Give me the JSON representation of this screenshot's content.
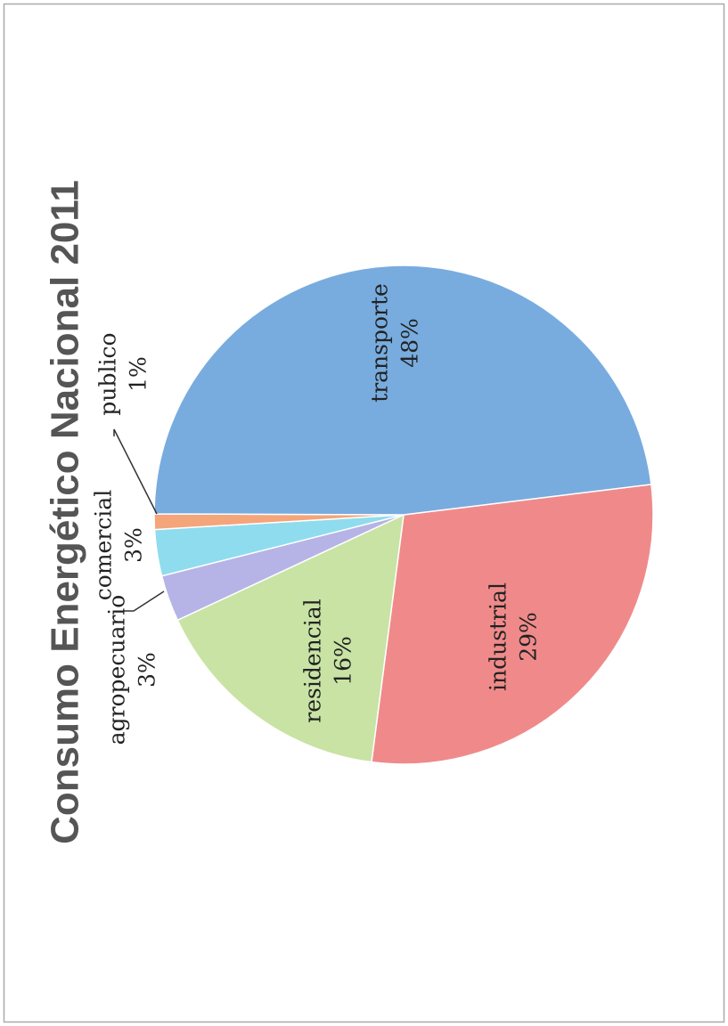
{
  "chart_data": {
    "type": "pie",
    "title": "Consumo Energético Nacional 2011",
    "categories": [
      "industrial",
      "residencial",
      "agropecuario",
      "comercial",
      "publico",
      "transporte"
    ],
    "values": [
      29,
      16,
      3,
      3,
      1,
      48
    ],
    "value_labels": [
      "29%",
      "16%",
      "3%",
      "3%",
      "1%",
      "48%"
    ],
    "colors": [
      "#f08a8a",
      "#c8e3a4",
      "#b6b4e6",
      "#8fdcee",
      "#f4a57a",
      "#78acdf"
    ]
  }
}
